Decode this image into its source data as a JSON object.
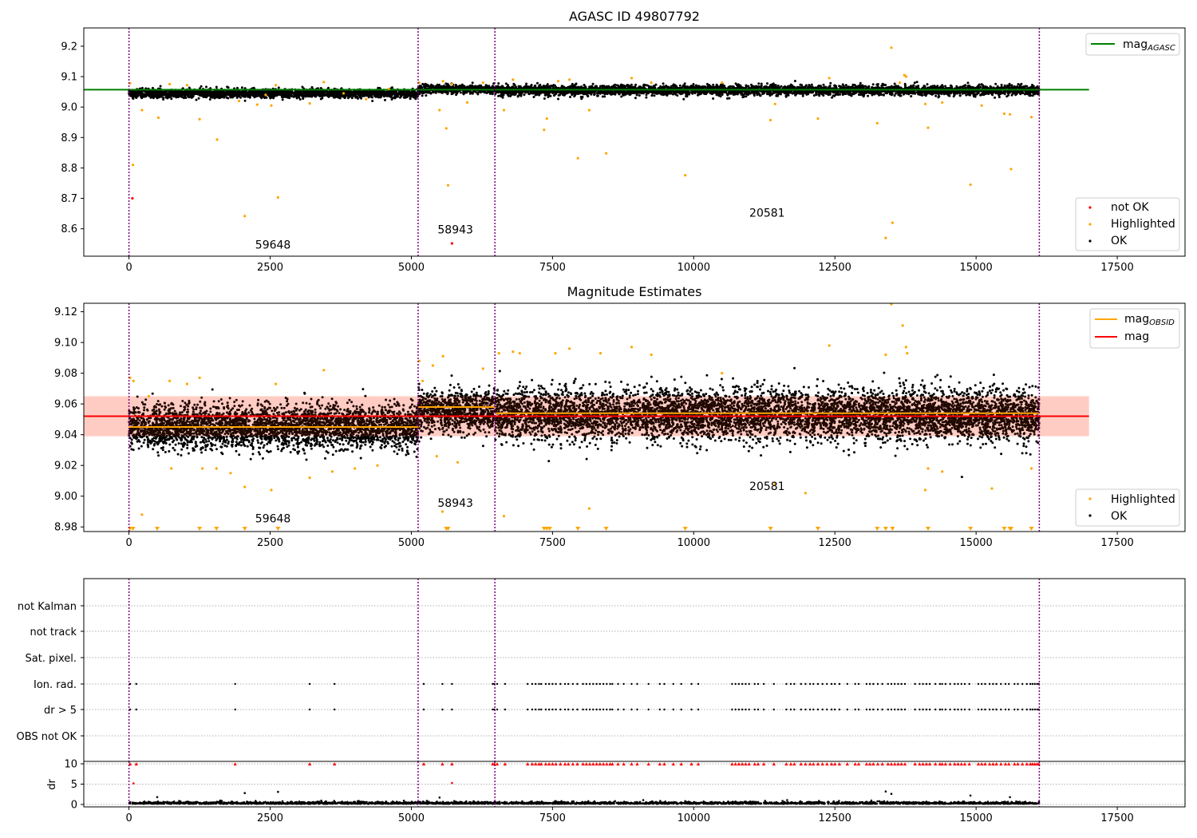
{
  "chart_data": [
    {
      "type": "scatter",
      "title": "AGASC ID 49807792",
      "xlim": [
        -800,
        18700
      ],
      "ylim": [
        8.51,
        9.26
      ],
      "x_ticks": [
        0,
        2500,
        5000,
        7500,
        10000,
        12500,
        15000,
        17500
      ],
      "x_tick_labels": [
        "0",
        "2500",
        "5000",
        "7500",
        "10000",
        "12500",
        "15000",
        "17500"
      ],
      "y_ticks": [
        8.6,
        8.7,
        8.8,
        8.9,
        9.0,
        9.1,
        9.2
      ],
      "y_tick_labels": [
        "8.6",
        "8.7",
        "8.8",
        "8.9",
        "9.0",
        "9.1",
        "9.2"
      ],
      "obsid_boundaries": [
        0,
        5120,
        6480,
        16120
      ],
      "obsid_labels": [
        {
          "text": "59648",
          "x": 2550,
          "y": 8.535
        },
        {
          "text": "58943",
          "x": 5780,
          "y": 8.585
        },
        {
          "text": "20581",
          "x": 11300,
          "y": 8.64
        }
      ],
      "reference_line": {
        "name": "mag_AGASC",
        "value": 9.057,
        "x_range": [
          -800,
          17000
        ],
        "color": "#008000"
      },
      "ok_band": [
        {
          "x_range": [
            0,
            5120
          ],
          "center": 9.045,
          "spread": 0.013
        },
        {
          "x_range": [
            5120,
            6480
          ],
          "center": 9.059,
          "spread": 0.013
        },
        {
          "x_range": [
            6480,
            16120
          ],
          "center": 9.055,
          "spread": 0.015
        }
      ],
      "highlighted_points": [
        [
          20,
          9.078
        ],
        [
          70,
          8.81
        ],
        [
          230,
          8.99
        ],
        [
          520,
          8.965
        ],
        [
          720,
          9.075
        ],
        [
          1030,
          9.072
        ],
        [
          1250,
          8.96
        ],
        [
          1560,
          8.893
        ],
        [
          1950,
          9.02
        ],
        [
          2050,
          8.642
        ],
        [
          2270,
          9.008
        ],
        [
          2420,
          9.04
        ],
        [
          2520,
          9.005
        ],
        [
          2600,
          9.072
        ],
        [
          2640,
          8.703
        ],
        [
          3200,
          9.012
        ],
        [
          3450,
          9.082
        ],
        [
          3800,
          9.045
        ],
        [
          4200,
          9.026
        ],
        [
          4600,
          9.06
        ],
        [
          5140,
          9.08
        ],
        [
          5500,
          8.99
        ],
        [
          5560,
          9.085
        ],
        [
          5620,
          8.93
        ],
        [
          5650,
          8.743
        ],
        [
          5720,
          9.075
        ],
        [
          5990,
          9.015
        ],
        [
          6270,
          9.08
        ],
        [
          6640,
          8.99
        ],
        [
          6800,
          9.09
        ],
        [
          7350,
          8.925
        ],
        [
          7400,
          8.962
        ],
        [
          7600,
          9.085
        ],
        [
          7800,
          9.09
        ],
        [
          7950,
          8.832
        ],
        [
          8150,
          8.99
        ],
        [
          8450,
          8.848
        ],
        [
          8900,
          9.095
        ],
        [
          9250,
          9.08
        ],
        [
          9850,
          8.776
        ],
        [
          10500,
          9.08
        ],
        [
          11360,
          8.957
        ],
        [
          11440,
          9.01
        ],
        [
          12200,
          8.962
        ],
        [
          12400,
          9.095
        ],
        [
          13250,
          8.947
        ],
        [
          13400,
          8.57
        ],
        [
          13500,
          9.195
        ],
        [
          13520,
          8.62
        ],
        [
          13650,
          9.08
        ],
        [
          13730,
          9.105
        ],
        [
          13760,
          9.1
        ],
        [
          14100,
          9.01
        ],
        [
          14150,
          8.932
        ],
        [
          14400,
          9.015
        ],
        [
          14900,
          8.745
        ],
        [
          15100,
          9.005
        ],
        [
          15500,
          8.978
        ],
        [
          15600,
          8.976
        ],
        [
          15620,
          8.796
        ],
        [
          15980,
          8.967
        ]
      ],
      "not_ok_points": [
        [
          60,
          8.7
        ],
        [
          5720,
          8.552
        ]
      ],
      "legend": {
        "placement_line": "upper-right",
        "line_entries": [
          {
            "label": "mag",
            "subscript": "AGASC",
            "color": "#008000"
          }
        ],
        "placement_points": "lower-right",
        "point_entries": [
          {
            "label": "not OK",
            "color": "#ff0000"
          },
          {
            "label": "Highlighted",
            "color": "#ffa500"
          },
          {
            "label": "OK",
            "color": "#000000"
          }
        ]
      }
    },
    {
      "type": "scatter",
      "title": "Magnitude Estimates",
      "xlim": [
        -800,
        18700
      ],
      "ylim": [
        8.977,
        9.1255
      ],
      "x_ticks": [
        0,
        2500,
        5000,
        7500,
        10000,
        12500,
        15000,
        17500
      ],
      "x_tick_labels": [
        "0",
        "2500",
        "5000",
        "7500",
        "10000",
        "12500",
        "15000",
        "17500"
      ],
      "y_ticks": [
        8.98,
        9.0,
        9.02,
        9.04,
        9.06,
        9.08,
        9.1,
        9.12
      ],
      "y_tick_labels": [
        "8.98",
        "9.00",
        "9.02",
        "9.04",
        "9.06",
        "9.08",
        "9.10",
        "9.12"
      ],
      "obsid_boundaries": [
        0,
        5120,
        6480,
        16120
      ],
      "obsid_labels": [
        {
          "text": "59648",
          "x": 2550,
          "y": 8.983
        },
        {
          "text": "58943",
          "x": 5780,
          "y": 8.993
        },
        {
          "text": "20581",
          "x": 11300,
          "y": 9.004
        }
      ],
      "mag_line": {
        "name": "mag",
        "value": 9.052,
        "x_range": [
          -800,
          17000
        ],
        "color": "#ff0000"
      },
      "mag_band": {
        "range": [
          9.039,
          9.065
        ],
        "x_range": [
          -800,
          17000
        ],
        "color": "#ffe0e0"
      },
      "mag_obsid": [
        {
          "x_range": [
            0,
            5120
          ],
          "value": 9.045
        },
        {
          "x_range": [
            5120,
            6480
          ],
          "value": 9.058
        },
        {
          "x_range": [
            6480,
            16120
          ],
          "value": 9.054
        }
      ],
      "ok_band": [
        {
          "x_range": [
            0,
            5120
          ],
          "center": 9.045,
          "spread": 0.013
        },
        {
          "x_range": [
            5120,
            6480
          ],
          "center": 9.055,
          "spread": 0.012
        },
        {
          "x_range": [
            6480,
            16120
          ],
          "center": 9.053,
          "spread": 0.015
        }
      ],
      "highlighted_points": [
        [
          20,
          9.077
        ],
        [
          80,
          9.075
        ],
        [
          230,
          8.988
        ],
        [
          350,
          9.065
        ],
        [
          720,
          9.075
        ],
        [
          750,
          9.018
        ],
        [
          1030,
          9.073
        ],
        [
          1250,
          9.077
        ],
        [
          1300,
          9.018
        ],
        [
          1550,
          9.018
        ],
        [
          1800,
          9.015
        ],
        [
          2050,
          9.006
        ],
        [
          2520,
          9.004
        ],
        [
          2600,
          9.073
        ],
        [
          3200,
          9.012
        ],
        [
          3450,
          9.082
        ],
        [
          3600,
          9.016
        ],
        [
          4000,
          9.018
        ],
        [
          4400,
          9.02
        ],
        [
          5140,
          9.088
        ],
        [
          5200,
          9.075
        ],
        [
          5380,
          9.085
        ],
        [
          5450,
          9.026
        ],
        [
          5550,
          8.99
        ],
        [
          5560,
          9.091
        ],
        [
          5820,
          9.022
        ],
        [
          6270,
          9.083
        ],
        [
          6550,
          9.093
        ],
        [
          6640,
          8.987
        ],
        [
          6800,
          9.094
        ],
        [
          6920,
          9.093
        ],
        [
          7550,
          9.093
        ],
        [
          7800,
          9.096
        ],
        [
          8150,
          8.992
        ],
        [
          8350,
          9.093
        ],
        [
          8900,
          9.097
        ],
        [
          9250,
          9.092
        ],
        [
          10500,
          9.08
        ],
        [
          11440,
          9.008
        ],
        [
          11980,
          9.002
        ],
        [
          12400,
          9.098
        ],
        [
          13400,
          9.092
        ],
        [
          13500,
          9.125
        ],
        [
          13700,
          9.111
        ],
        [
          13760,
          9.097
        ],
        [
          13780,
          9.093
        ],
        [
          14100,
          9.004
        ],
        [
          14150,
          9.018
        ],
        [
          14400,
          9.016
        ],
        [
          15280,
          9.005
        ],
        [
          15980,
          9.018
        ]
      ],
      "clipped_highlighted_x": [
        20,
        70,
        500,
        1250,
        1550,
        2050,
        2640,
        5620,
        5650,
        7350,
        7400,
        7450,
        7950,
        8450,
        9850,
        11360,
        12200,
        13250,
        13400,
        13520,
        14150,
        14900,
        15500,
        15600,
        15620,
        15980
      ],
      "legend": {
        "placement_line": "upper-right",
        "line_entries": [
          {
            "label": "mag",
            "subscript": "OBSID",
            "color": "#ffa500"
          },
          {
            "label": "mag",
            "subscript": "",
            "color": "#ff0000"
          }
        ],
        "placement_points": "lower-right",
        "point_entries": [
          {
            "label": "Highlighted",
            "color": "#ffa500"
          },
          {
            "label": "OK",
            "color": "#000000"
          }
        ]
      }
    },
    {
      "type": "scatter",
      "xlim": [
        -800,
        18700
      ],
      "flag_rows": [
        "not Kalman",
        "not track",
        "Sat. pixel.",
        "Ion. rad.",
        "dr > 5",
        "OBS not OK"
      ],
      "flagged_x": [
        20,
        130,
        1880,
        3200,
        3640,
        5220,
        5550,
        5720,
        6440,
        6470,
        6520,
        6660,
        7060,
        7140,
        7200,
        7260,
        7300,
        7380,
        7440,
        7500,
        7560,
        7640,
        7720,
        7780,
        7860,
        7940,
        8040,
        8100,
        8160,
        8220,
        8280,
        8340,
        8400,
        8460,
        8520,
        8560,
        8660,
        8760,
        8900,
        9000,
        9200,
        9400,
        9480,
        9640,
        9780,
        9960,
        10080,
        10680,
        10740,
        10800,
        10860,
        10920,
        10980,
        11080,
        11140,
        11240,
        11420,
        11640,
        11720,
        11780,
        11900,
        11980,
        12060,
        12120,
        12200,
        12280,
        12360,
        12440,
        12500,
        12580,
        12720,
        12860,
        12920,
        13060,
        13120,
        13180,
        13260,
        13340,
        13440,
        13500,
        13560,
        13620,
        13680,
        13740,
        13920,
        14000,
        14060,
        14120,
        14180,
        14280,
        14360,
        14400,
        14460,
        14540,
        14620,
        14680,
        14740,
        14800,
        14880,
        15040,
        15100,
        15160,
        15240,
        15300,
        15360,
        15440,
        15520,
        15580,
        15680,
        15740,
        15820,
        15900,
        15960,
        16000,
        16040,
        16080,
        16110
      ],
      "dr": {
        "ylabel": "dr",
        "ylim": [
          -0.6,
          10.6
        ],
        "y_ticks": [
          0,
          5,
          10
        ],
        "y_tick_labels": [
          "0",
          "5",
          "10"
        ],
        "clipped_value": 10,
        "outliers": [
          [
            80,
            5.2
          ],
          [
            500,
            1.8
          ],
          [
            2050,
            2.8
          ],
          [
            2640,
            3.1
          ],
          [
            5500,
            1.7
          ],
          [
            5720,
            5.3
          ],
          [
            13400,
            3.2
          ],
          [
            13500,
            2.6
          ],
          [
            14900,
            2.2
          ],
          [
            15600,
            1.8
          ]
        ]
      }
    }
  ]
}
